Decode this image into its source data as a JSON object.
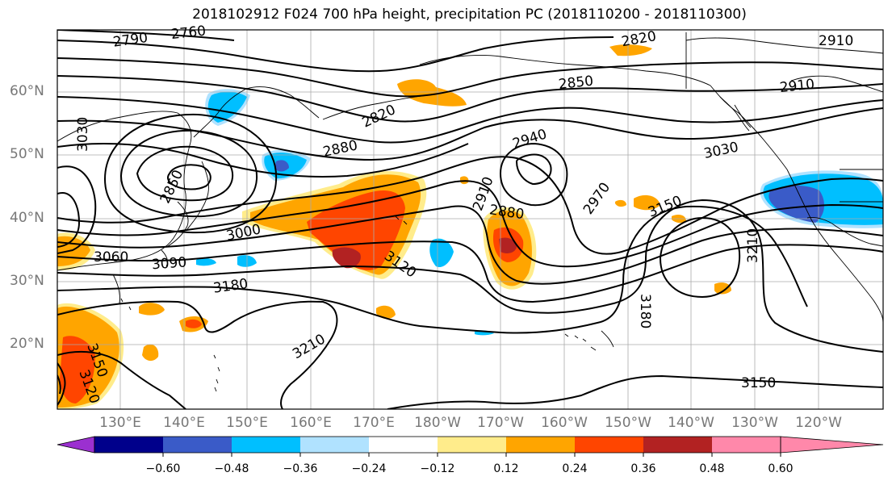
{
  "title": "2018102912 F024 700 hPa height, precipitation PC (2018110200 - 2018110300)",
  "map": {
    "projection": "equirectangular",
    "lat_labels": [
      "60°N",
      "50°N",
      "40°N",
      "30°N",
      "20°N"
    ],
    "lon_labels": [
      "130°E",
      "140°E",
      "150°E",
      "160°E",
      "170°E",
      "180°W",
      "170°W",
      "160°W",
      "150°W",
      "140°W",
      "130°W",
      "120°W"
    ],
    "contour_labels": [
      "2790",
      "2760",
      "2820",
      "2910",
      "2850",
      "2910",
      "2820",
      "3030",
      "2940",
      "2880",
      "3030",
      "2850",
      "2910",
      "2970",
      "2880",
      "3150",
      "3000",
      "3060",
      "3090",
      "3120",
      "3180",
      "3210",
      "3180",
      "3210",
      "3150",
      "3150",
      "3120"
    ]
  },
  "colorbar": {
    "ticks": [
      "−0.60",
      "−0.48",
      "−0.36",
      "−0.24",
      "−0.12",
      "0.12",
      "0.24",
      "0.36",
      "0.48",
      "0.60"
    ],
    "colors": [
      "#9b30d0",
      "#00008b",
      "#3a5bc8",
      "#00bfff",
      "#b0e2ff",
      "#ffffff",
      "#ffec8b",
      "#ffa500",
      "#ff4500",
      "#b22222",
      "#ff88aa"
    ]
  }
}
